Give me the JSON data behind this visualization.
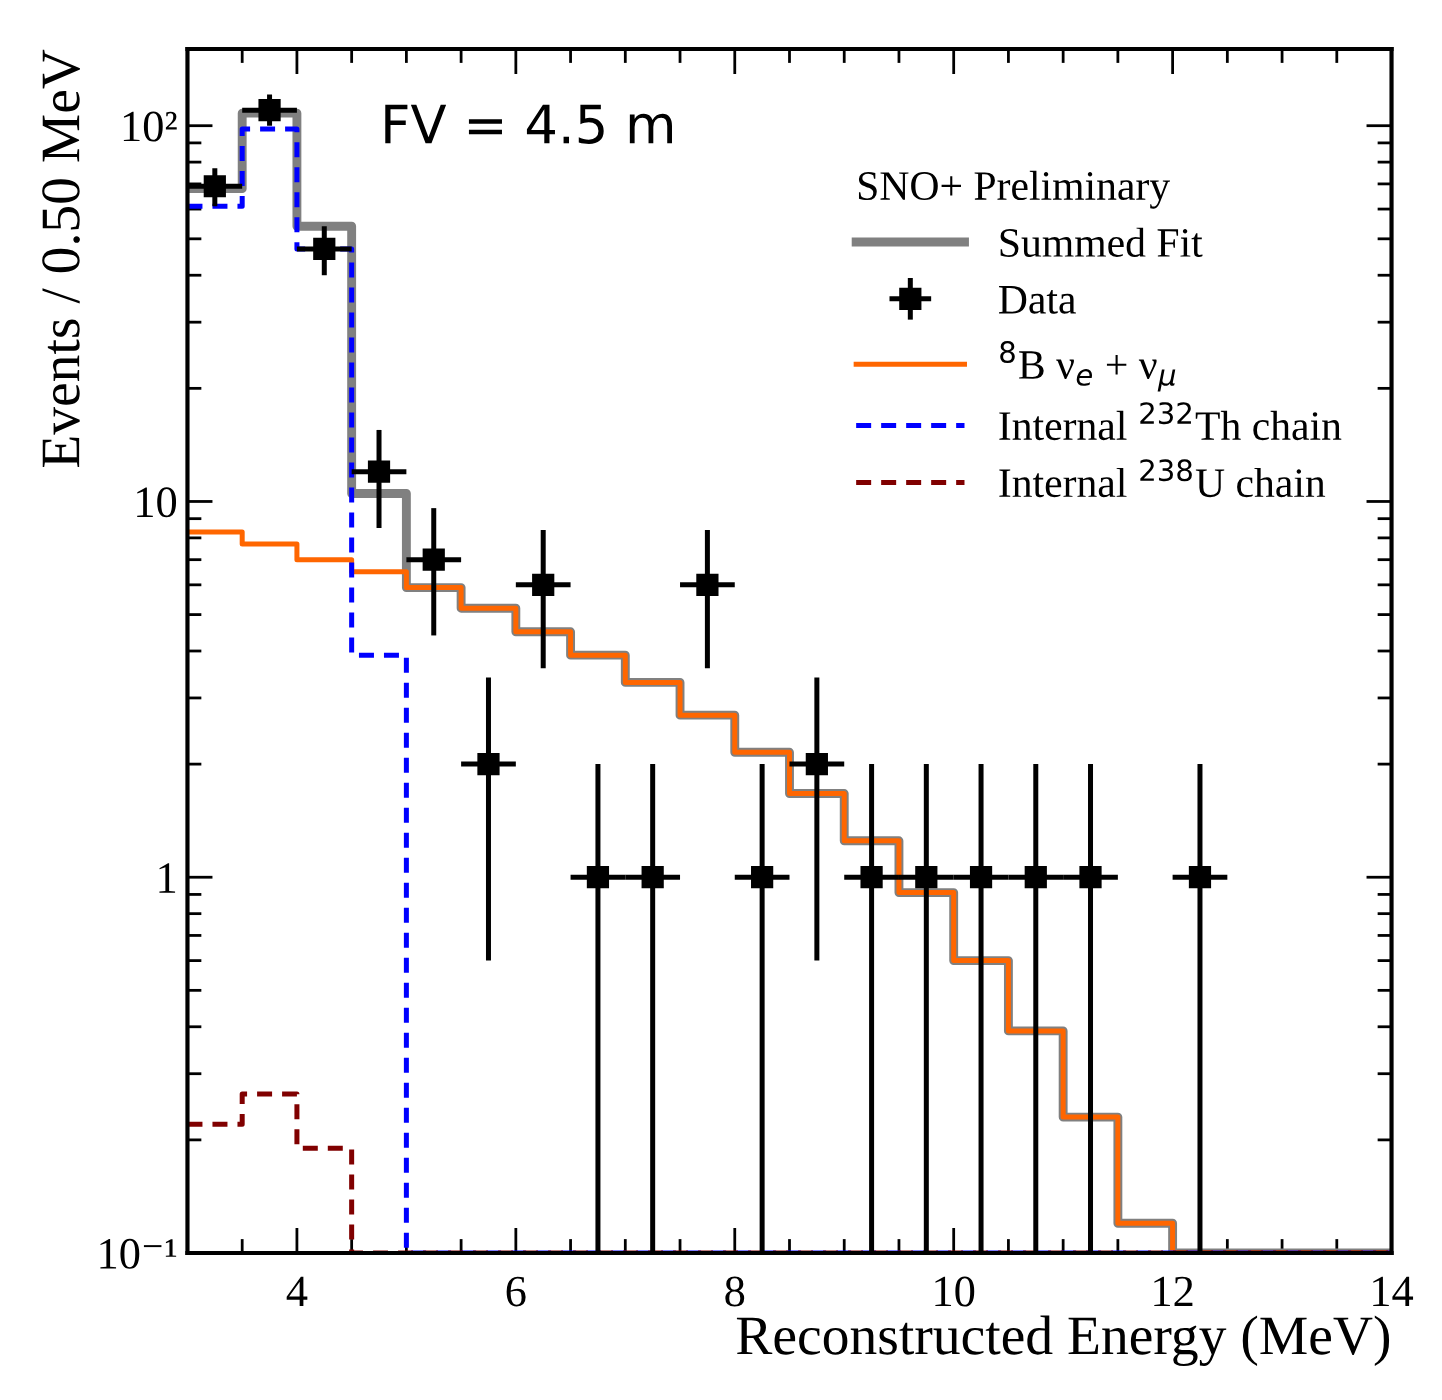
{
  "chart_data": {
    "type": "histogram",
    "xlabel": "Reconstructed Energy (MeV)",
    "ylabel": "Events / 0.50 MeV",
    "legend_title": "SNO+ Preliminary",
    "annotations": [
      "FV = 4.5 m"
    ],
    "bins": [
      3.0,
      3.5,
      4.0,
      4.5,
      5.0,
      5.5,
      6.0,
      6.5,
      7.0,
      7.5,
      8.0,
      8.5,
      9.0,
      9.5,
      10.0,
      10.5,
      11.0,
      11.5,
      12.0,
      12.5,
      13.0,
      13.5,
      14.0
    ],
    "log": "y",
    "xlim": [
      3,
      14
    ],
    "ylim": [
      0.1,
      160
    ],
    "xticks": [
      4,
      6,
      8,
      10,
      12,
      14
    ],
    "yticks": [
      {
        "value": 0.1,
        "label": "10⁻¹"
      },
      1,
      10,
      {
        "value": 100,
        "label": "10²"
      }
    ],
    "grid": false,
    "legend": "top right",
    "series": [
      {
        "name": "Summed Fit",
        "color": "#808080",
        "line_style": "solid",
        "values": [
          68,
          108,
          54,
          10.5,
          5.9,
          5.2,
          4.5,
          3.9,
          3.3,
          2.7,
          2.15,
          1.67,
          1.25,
          0.91,
          0.6,
          0.39,
          0.23,
          0.12,
          0.1,
          0.1,
          0.1,
          0.1
        ]
      },
      {
        "name": "Data",
        "type": "scatter",
        "color": "#000000",
        "marker": "square",
        "x": [
          3.25,
          3.75,
          4.25,
          4.75,
          5.25,
          5.75,
          6.25,
          6.75,
          7.25,
          7.75,
          8.25,
          8.75,
          9.25,
          9.75,
          10.25,
          10.75,
          11.25,
          12.25
        ],
        "values": [
          69,
          110,
          47,
          12,
          7,
          2,
          6,
          1,
          1,
          6,
          1,
          2,
          1,
          1,
          1,
          1,
          1,
          1
        ],
        "errors": [
          [
            61,
            77
          ],
          [
            100,
            121
          ],
          [
            40,
            54
          ],
          [
            8.5,
            15.5
          ],
          [
            4.4,
            9.6
          ],
          [
            0.6,
            3.4
          ],
          [
            3.6,
            8.4
          ],
          [
            0.1,
            2
          ],
          [
            0.1,
            2
          ],
          [
            3.6,
            8.4
          ],
          [
            0.1,
            2
          ],
          [
            0.6,
            3.4
          ],
          [
            0.1,
            2
          ],
          [
            0.1,
            2
          ],
          [
            0.1,
            2
          ],
          [
            0.1,
            2
          ],
          [
            0.1,
            2
          ],
          [
            0.1,
            2
          ]
        ],
        "xerrors": [
          0.25,
          0.25,
          0.25,
          0.25,
          0.25,
          0.25,
          0.25,
          0.25,
          0.25,
          0.25,
          0.25,
          0.25,
          0.25,
          0.25,
          0.25,
          0.25,
          0.25,
          0.25
        ]
      },
      {
        "name": "$^{8}$B ν$_{e}$ + ν$_{μ}$",
        "color": "#ff6600",
        "line_style": "solid",
        "values": [
          8.3,
          7.7,
          7.0,
          6.5,
          5.9,
          5.2,
          4.5,
          3.9,
          3.3,
          2.7,
          2.15,
          1.67,
          1.25,
          0.91,
          0.6,
          0.39,
          0.23,
          0.12,
          0.1,
          0.1,
          0.1,
          0.1
        ]
      },
      {
        "name": "Internal $^{232}$Th chain",
        "color": "#0000ff",
        "line_style": "dashed",
        "values": [
          61,
          98,
          47,
          3.9,
          0.1,
          0.1,
          0.1,
          0.1,
          0.1,
          0.1,
          0.1,
          0.1,
          0.1,
          0.1,
          0.1,
          0.1,
          0.1,
          0.1,
          0.1,
          0.1,
          0.1,
          0.1
        ]
      },
      {
        "name": "Internal $^{238}$U chain",
        "color": "#800000",
        "line_style": "dashed",
        "values": [
          0.22,
          0.265,
          0.19,
          0.1,
          0.1,
          0.1,
          0.1,
          0.1,
          0.1,
          0.1,
          0.1,
          0.1,
          0.1,
          0.1,
          0.1,
          0.1,
          0.1,
          0.1,
          0.1,
          0.1,
          0.1,
          0.1
        ]
      }
    ]
  }
}
